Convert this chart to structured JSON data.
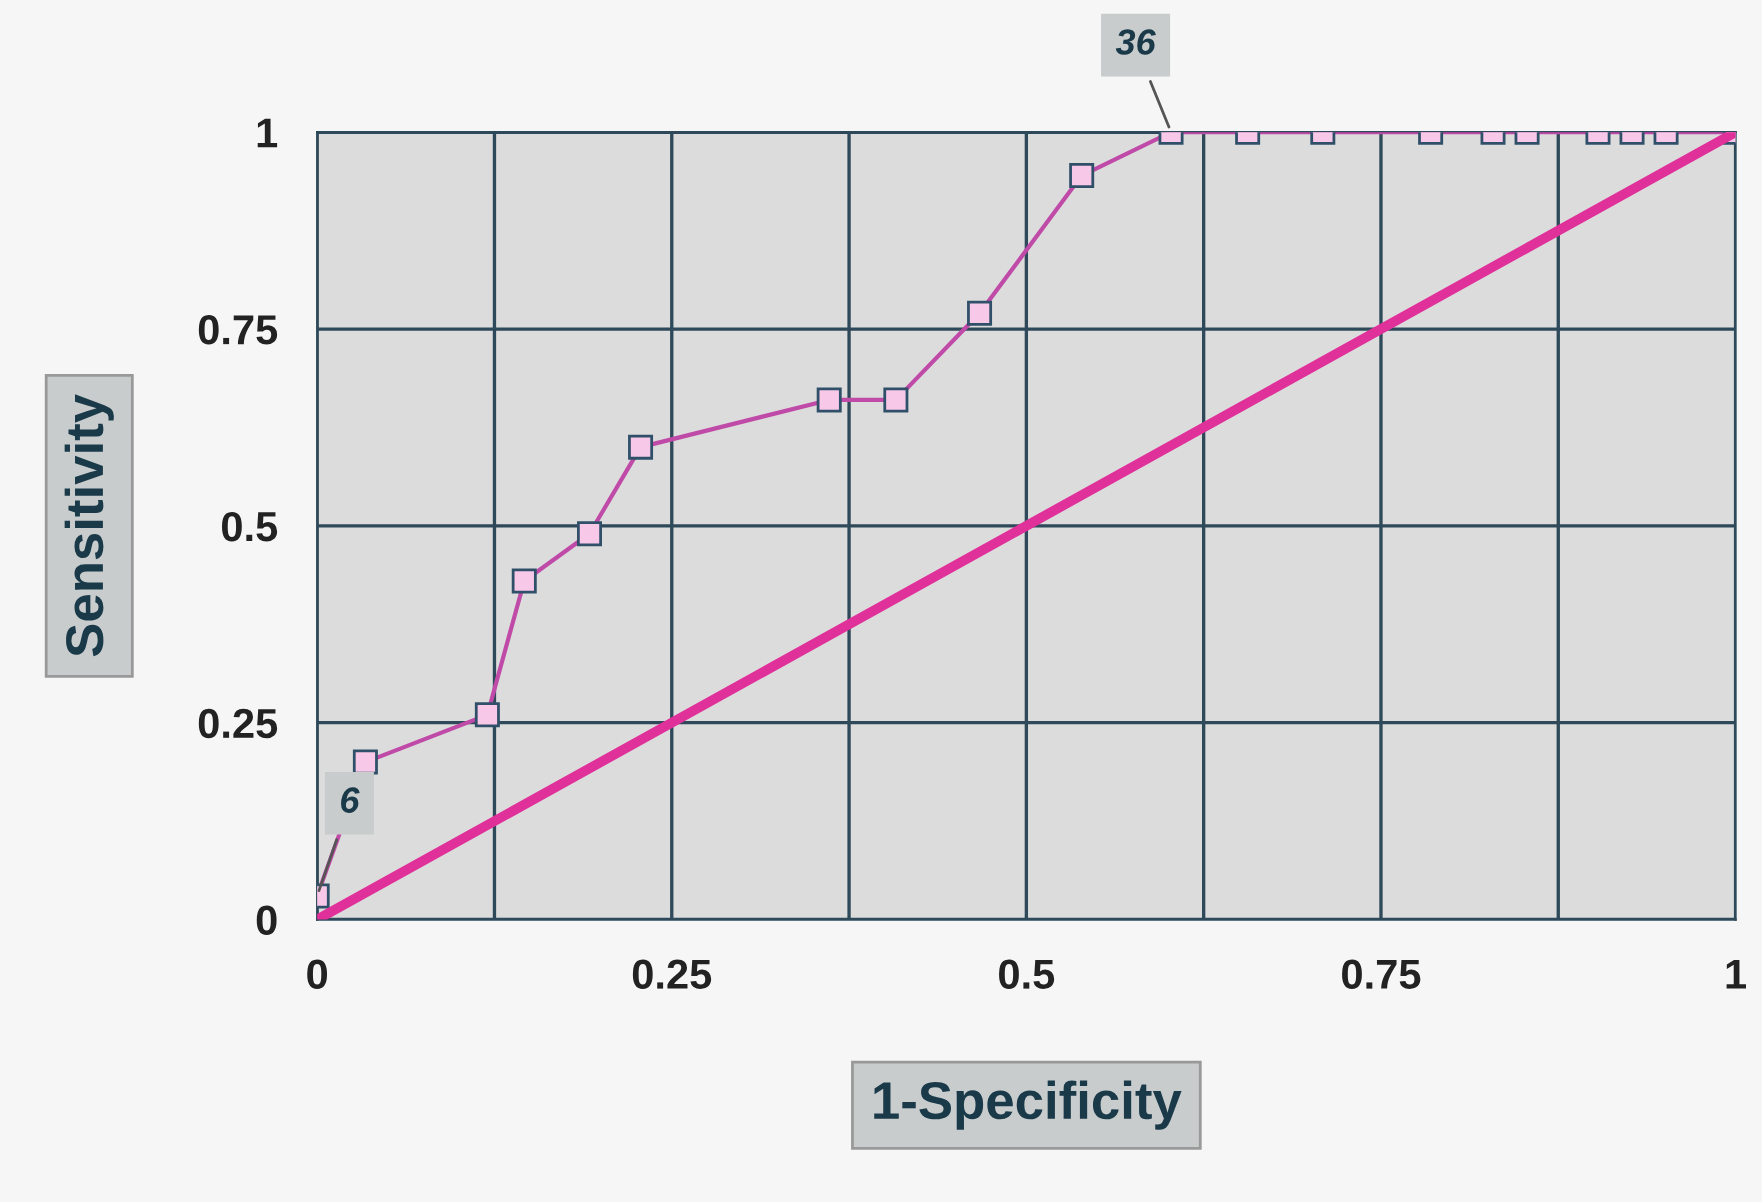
{
  "chart_data": {
    "type": "line",
    "xlabel": "1-Specificity",
    "ylabel": "Sensitivity",
    "xlim": [
      0,
      1
    ],
    "ylim": [
      0,
      1
    ],
    "xticks": [
      0,
      {
        "value": 0.125,
        "label": null
      },
      0.25,
      {
        "value": 0.375,
        "label": null
      },
      0.5,
      {
        "value": 0.625,
        "label": null
      },
      0.75,
      {
        "value": 0.875,
        "label": null
      },
      1
    ],
    "yticks": [
      0,
      0.25,
      0.5,
      0.75,
      1
    ],
    "grid": true,
    "marker": "square",
    "series": [
      {
        "color": "#c04aa8",
        "x": [
          0,
          0.034,
          0.12,
          0.146,
          0.192,
          0.228,
          0.361,
          0.408,
          0.467,
          0.539,
          0.602,
          0.656,
          0.709,
          0.785,
          0.829,
          0.853,
          0.903,
          0.927,
          0.951,
          1
        ],
        "values": [
          0.03,
          0.2,
          0.26,
          0.43,
          0.49,
          0.6,
          0.66,
          0.66,
          0.77,
          0.945,
          1,
          1,
          1,
          1,
          1,
          1,
          1,
          1,
          1,
          1
        ]
      },
      {
        "color": "#e0309a",
        "marker": "none",
        "x": [
          0,
          1
        ],
        "values": [
          0,
          1
        ]
      }
    ],
    "annotations": [
      {
        "text": "6",
        "x": 0,
        "y": 0.03
      },
      {
        "text": "36",
        "x": 0.602,
        "y": 1
      }
    ]
  }
}
